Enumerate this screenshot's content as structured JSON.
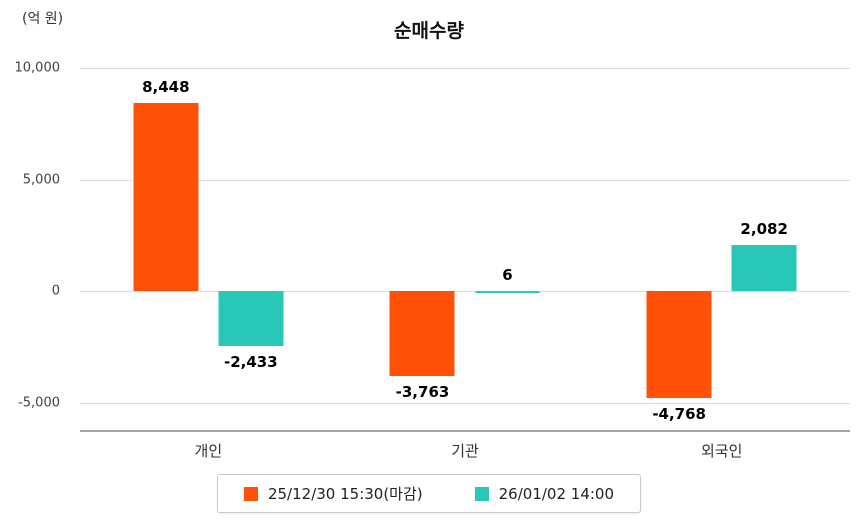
{
  "chart_data": {
    "type": "bar",
    "title": "순매수량",
    "unit_label": "(억 원)",
    "categories": [
      "개인",
      "기관",
      "외국인"
    ],
    "series": [
      {
        "name": "25/12/30 15:30(마감)",
        "color": "#ff5208",
        "values": [
          8448,
          -3763,
          -4768
        ]
      },
      {
        "name": "26/01/02 14:00",
        "color": "#29c7b7",
        "values": [
          -2433,
          6,
          2082
        ]
      }
    ],
    "value_labels": [
      "8,448",
      "-2,433",
      "-3,763",
      "6",
      "-4,768",
      "2,082"
    ],
    "yticks": [
      10000,
      5000,
      0,
      -5000
    ],
    "ylim": [
      -6200,
      10000
    ],
    "grid": true,
    "legend_position": "bottom"
  }
}
